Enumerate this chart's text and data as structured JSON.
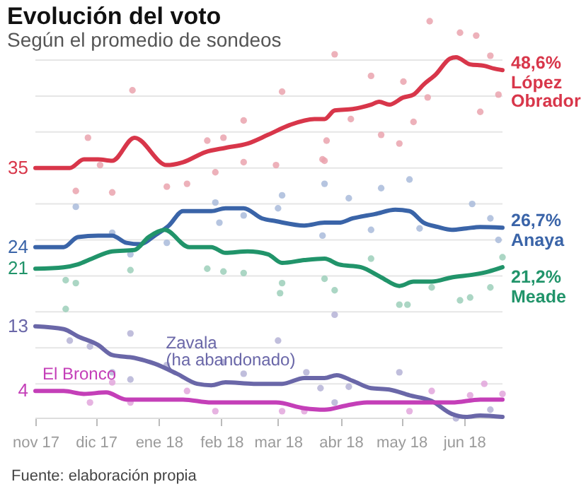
{
  "chart_data": {
    "type": "line",
    "title": "Evolución del voto",
    "subtitle": "Según el promedio de sondeos",
    "annotations": [
      "Fuente: elaboración propia"
    ],
    "xlim": [
      "2017-11-01",
      "2018-06-20"
    ],
    "xticks": [
      {
        "value": "2017-11-01",
        "label": "nov 17"
      },
      {
        "value": "2017-12-01",
        "label": "dic 17"
      },
      {
        "value": "2018-01-01",
        "label": "ene 18"
      },
      {
        "value": "2018-02-01",
        "label": "feb 18"
      },
      {
        "value": "2018-03-01",
        "label": "mar 18"
      },
      {
        "value": "2018-04-01",
        "label": "abr 18"
      },
      {
        "value": "2018-05-01",
        "label": "may 18"
      },
      {
        "value": "2018-06-01",
        "label": "jun 18"
      }
    ],
    "yticks": [
      {
        "value": 5,
        "label": null
      },
      {
        "value": 10,
        "label": null
      },
      {
        "value": 15,
        "label": null
      },
      {
        "value": 20,
        "label": null
      },
      {
        "value": 25,
        "label": null
      },
      {
        "value": 30,
        "label": null
      },
      {
        "value": 35,
        "label": null
      },
      {
        "value": 40,
        "label": null
      },
      {
        "value": 45,
        "label": null
      },
      {
        "value": 50,
        "label": null
      }
    ],
    "grid": "y",
    "tick_labels": "x",
    "series": [
      {
        "type": "scatter",
        "marker": "circle",
        "color": "#eaa3ae",
        "x": [
          "2017-12-19",
          "2017-11-27",
          "2017-12-03",
          "2018-02-12",
          "2018-03-03",
          "2018-03-29",
          "2018-05-15",
          "2018-05-30",
          "2018-06-07",
          "2018-06-14",
          "2018-06-18",
          "2018-06-09",
          "2018-04-30",
          "2018-05-07",
          "2018-05-14",
          "2018-05-02",
          "2018-04-16",
          "2018-04-21",
          "2018-03-25",
          "2018-01-25",
          "2018-02-02",
          "2018-04-06",
          "2018-03-23",
          "2018-02-12",
          "2017-11-21",
          "2017-12-09",
          "2018-01-05",
          "2018-01-29",
          "2018-02-28",
          "2018-03-24",
          "2018-01-15"
        ],
        "values": [
          45.8,
          39.2,
          35.4,
          41.6,
          45.6,
          50.8,
          55.4,
          53.8,
          53.4,
          50.6,
          45.2,
          42.8,
          38.4,
          41.4,
          44.8,
          47,
          47.8,
          39.6,
          38.8,
          38.8,
          39.2,
          41.8,
          36.2,
          35.8,
          31.8,
          31.6,
          32.4,
          34.4,
          35.4,
          36,
          32.8
        ]
      },
      {
        "type": "scatter",
        "marker": "circle",
        "color": "#a9bbdb",
        "x": [
          "2017-11-21",
          "2018-01-29",
          "2018-02-12",
          "2018-03-03",
          "2018-03-24",
          "2018-04-05",
          "2018-04-21",
          "2018-05-05",
          "2018-06-05",
          "2018-06-14",
          "2018-05-10",
          "2018-03-23",
          "2018-03-01",
          "2017-12-18",
          "2018-01-05",
          "2018-04-16",
          "2018-01-31",
          "2018-06-18",
          "2017-12-09"
        ],
        "values": [
          29.6,
          30.2,
          28.4,
          31.2,
          32.8,
          30.8,
          32.2,
          33.4,
          30,
          28,
          26.6,
          25.6,
          29.4,
          23,
          24.6,
          26.4,
          27.4,
          25,
          26
        ]
      },
      {
        "type": "scatter",
        "marker": "circle",
        "color": "#9ccfba",
        "x": [
          "2017-11-16",
          "2017-11-21",
          "2017-11-16",
          "2017-12-18",
          "2018-01-25",
          "2018-02-02",
          "2018-02-12",
          "2018-03-03",
          "2018-03-24",
          "2018-03-29",
          "2018-04-30",
          "2018-05-04",
          "2018-05-16",
          "2018-05-30",
          "2018-06-04",
          "2018-06-14",
          "2018-06-20",
          "2018-04-16",
          "2018-03-02"
        ],
        "values": [
          19.4,
          19,
          15.4,
          20.8,
          21,
          20.6,
          20.4,
          19,
          19.6,
          18,
          16,
          16,
          18.4,
          16.6,
          17,
          18.4,
          22.6,
          22.4,
          17.6
        ]
      },
      {
        "type": "scatter",
        "marker": "circle",
        "color": "#b5b3d6",
        "x": [
          "2017-12-18",
          "2017-11-18",
          "2017-11-28",
          "2017-12-09",
          "2017-12-18",
          "2018-01-05",
          "2018-02-02",
          "2018-02-12",
          "2018-03-01",
          "2018-03-15",
          "2018-03-29",
          "2018-04-05",
          "2018-04-30",
          "2018-05-28",
          "2018-06-14",
          "2018-03-29",
          "2018-03-22"
        ],
        "values": [
          12,
          11,
          10.2,
          6.6,
          5.6,
          7.6,
          8,
          6.4,
          11,
          6.6,
          14.6,
          4.6,
          6.6,
          0.2,
          1.4,
          2.4,
          4.4
        ]
      },
      {
        "type": "scatter",
        "marker": "circle",
        "color": "#e2a6dc",
        "x": [
          "2017-11-28",
          "2017-12-18",
          "2018-01-15",
          "2018-01-29",
          "2018-03-03",
          "2018-03-14",
          "2018-05-05",
          "2018-05-16",
          "2018-06-11",
          "2018-06-20",
          "2018-06-04",
          "2017-12-09"
        ],
        "values": [
          2.4,
          2.4,
          4,
          1.2,
          1.2,
          1.2,
          1.2,
          4,
          5,
          3.6,
          3.4,
          5.2
        ]
      },
      {
        "type": "line",
        "marker": "none",
        "line_style": "solid",
        "name": "López Obrador",
        "color": "#d8364a",
        "x": [
          "2017-11-01",
          "2017-11-18",
          "2017-11-25",
          "2017-12-02",
          "2017-12-09",
          "2017-12-20",
          "2018-01-05",
          "2018-01-13",
          "2018-01-24",
          "2018-02-03",
          "2018-02-14",
          "2018-02-24",
          "2018-03-07",
          "2018-03-19",
          "2018-03-24",
          "2018-03-29",
          "2018-04-07",
          "2018-04-16",
          "2018-04-20",
          "2018-04-25",
          "2018-05-02",
          "2018-05-07",
          "2018-05-12",
          "2018-05-18",
          "2018-05-25",
          "2018-05-28",
          "2018-06-04",
          "2018-06-11",
          "2018-06-16",
          "2018-06-20"
        ],
        "values": [
          35,
          35,
          36.2,
          36.2,
          36,
          39.2,
          35.4,
          35.8,
          37.2,
          37.8,
          38.4,
          39.6,
          41,
          41.8,
          41.8,
          43,
          43.2,
          43.8,
          44.2,
          43.8,
          44.8,
          45.2,
          46.6,
          48,
          50.2,
          50.4,
          49.4,
          49.2,
          48.8,
          48.6
        ],
        "value_labels": [
          "35",
          null,
          null,
          null,
          null,
          null,
          null,
          null,
          null,
          null,
          null,
          null,
          null,
          null,
          null,
          null,
          null,
          null,
          null,
          null,
          null,
          null,
          null,
          null,
          null,
          null,
          null,
          null,
          null,
          "48,6%"
        ]
      },
      {
        "type": "line",
        "marker": "none",
        "line_style": "solid",
        "name": "Anaya",
        "color": "#3a64a8",
        "x": [
          "2017-11-01",
          "2017-11-15",
          "2017-11-22",
          "2017-12-02",
          "2017-12-09",
          "2017-12-16",
          "2017-12-23",
          "2017-12-30",
          "2018-01-06",
          "2018-01-13",
          "2018-01-19",
          "2018-01-27",
          "2018-02-03",
          "2018-02-12",
          "2018-02-21",
          "2018-02-28",
          "2018-03-14",
          "2018-03-24",
          "2018-03-31",
          "2018-04-07",
          "2018-04-18",
          "2018-04-28",
          "2018-05-05",
          "2018-05-12",
          "2018-05-19",
          "2018-05-26",
          "2018-06-02",
          "2018-06-09",
          "2018-06-20"
        ],
        "values": [
          24,
          24,
          25.4,
          25.6,
          25.6,
          24.6,
          24.4,
          25.6,
          27,
          29,
          29,
          29,
          29.4,
          29.4,
          28,
          27.6,
          27,
          27.4,
          27.4,
          28,
          28.6,
          29.2,
          29,
          27.4,
          26.8,
          26.4,
          26.6,
          26.8,
          26.7
        ],
        "value_labels": [
          "24",
          null,
          null,
          null,
          null,
          null,
          null,
          null,
          null,
          null,
          null,
          null,
          null,
          null,
          null,
          null,
          null,
          null,
          null,
          null,
          null,
          null,
          null,
          null,
          null,
          null,
          null,
          null,
          "26,7%"
        ]
      },
      {
        "type": "line",
        "marker": "none",
        "line_style": "solid",
        "name": "Meade",
        "color": "#21946a",
        "x": [
          "2017-11-01",
          "2017-11-15",
          "2017-11-22",
          "2017-11-29",
          "2017-12-09",
          "2017-12-20",
          "2017-12-27",
          "2018-01-04",
          "2018-01-16",
          "2018-01-27",
          "2018-02-03",
          "2018-02-14",
          "2018-02-24",
          "2018-03-03",
          "2018-03-14",
          "2018-03-24",
          "2018-03-31",
          "2018-04-11",
          "2018-04-21",
          "2018-04-30",
          "2018-05-07",
          "2018-05-16",
          "2018-05-26",
          "2018-06-06",
          "2018-06-13",
          "2018-06-20"
        ],
        "values": [
          21,
          21.2,
          21.6,
          22.4,
          23.4,
          23.6,
          25.4,
          26.4,
          24,
          24,
          23.2,
          23.4,
          23,
          21.8,
          22.2,
          22.4,
          21.6,
          21.2,
          19.8,
          18.6,
          19.2,
          19.2,
          19.8,
          20.2,
          20.6,
          21.2
        ],
        "value_labels": [
          "21",
          null,
          null,
          null,
          null,
          null,
          null,
          null,
          null,
          null,
          null,
          null,
          null,
          null,
          null,
          null,
          null,
          null,
          null,
          null,
          null,
          null,
          null,
          null,
          null,
          "21,2%"
        ]
      },
      {
        "type": "line",
        "marker": "none",
        "line_style": "solid",
        "name": "Zavala (ha abandonado)",
        "color": "#6a67a8",
        "x": [
          "2017-11-01",
          "2017-11-15",
          "2017-11-22",
          "2017-12-02",
          "2017-12-09",
          "2017-12-20",
          "2017-12-30",
          "2018-01-10",
          "2018-01-20",
          "2018-01-27",
          "2018-02-03",
          "2018-02-17",
          "2018-03-03",
          "2018-03-14",
          "2018-03-24",
          "2018-03-30",
          "2018-04-07",
          "2018-04-16",
          "2018-04-25",
          "2018-05-05",
          "2018-05-16",
          "2018-05-26",
          "2018-06-02",
          "2018-06-09",
          "2018-06-20"
        ],
        "values": [
          13,
          12.6,
          11.6,
          10.4,
          9,
          8.6,
          7.8,
          6.4,
          5,
          4.8,
          5.2,
          5,
          5,
          5.8,
          5.8,
          6.2,
          5.4,
          4.4,
          4.2,
          3.4,
          2.6,
          0.8,
          0.4,
          0.6,
          0.4
        ],
        "value_labels": [
          "13",
          null,
          null,
          null,
          null,
          null,
          null,
          null,
          null,
          null,
          null,
          null,
          null,
          null,
          null,
          null,
          null,
          null,
          null,
          null,
          null,
          null,
          null,
          null,
          null
        ]
      },
      {
        "type": "line",
        "marker": "none",
        "line_style": "solid",
        "name": "El Bronco",
        "color": "#c43fb8",
        "x": [
          "2017-11-01",
          "2017-11-15",
          "2017-11-25",
          "2017-12-06",
          "2017-12-16",
          "2017-12-30",
          "2018-01-13",
          "2018-01-27",
          "2018-02-14",
          "2018-02-28",
          "2018-03-14",
          "2018-03-24",
          "2018-04-04",
          "2018-04-14",
          "2018-04-28",
          "2018-05-12",
          "2018-05-26",
          "2018-06-09",
          "2018-06-20"
        ],
        "values": [
          4,
          4,
          3.6,
          3.8,
          2.8,
          2.8,
          2.8,
          2.4,
          2.4,
          2.4,
          1.6,
          1.4,
          2,
          2.4,
          2.4,
          2.4,
          2.4,
          2.8,
          2.8
        ],
        "value_labels": [
          "4",
          null,
          null,
          null,
          null,
          null,
          null,
          null,
          null,
          null,
          null,
          null,
          null,
          null,
          null,
          null,
          null,
          null,
          null
        ]
      }
    ]
  }
}
